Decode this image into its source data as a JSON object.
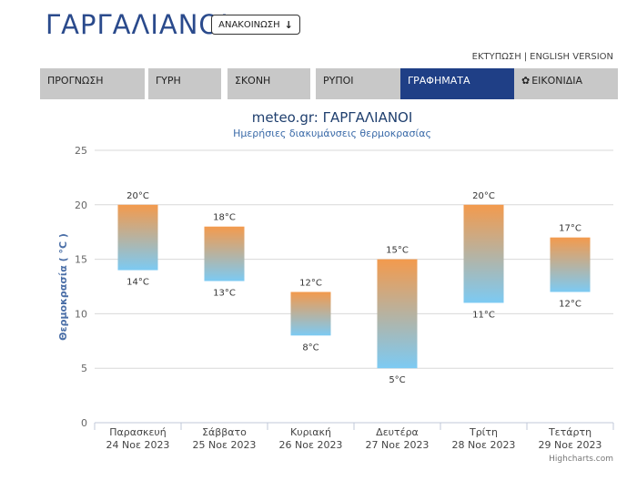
{
  "header": {
    "site_title": "ΓΑΡΓΑΛΙΑΝΟΙ",
    "announce_label": "ΑΝΑΚΟΙΝΩΣΗ",
    "announce_icon": "arrow-down-icon"
  },
  "toplinks": {
    "print": "ΕΚΤΥΠΩΣΗ",
    "separator": "|",
    "english": "ENGLISH VERSION"
  },
  "tabs": [
    {
      "label": "ΠΡΟΓΝΩΣΗ"
    },
    {
      "label": "ΓΥΡΗ"
    },
    {
      "label": "ΣΚΟΝΗ"
    },
    {
      "label": "ΡΥΠΟΙ"
    },
    {
      "label": "ΓΡΑΦΗΜΑΤΑ"
    },
    {
      "label": "ΕΙΚΟΝΙΔΙΑ"
    }
  ],
  "colors": {
    "brand": "#2a4a8c",
    "active_tab": "#1f3f86",
    "tab_bg": "#c8c8c8",
    "bar_top": "#f39a4d",
    "bar_bottom": "#7ccaf3"
  },
  "credits": "Highcharts.com",
  "chart_data": {
    "type": "columnrange",
    "title": "meteo.gr: ΓΑΡΓΑΛΙΑΝΟΙ",
    "subtitle": "Ημερήσιες διακυμάνσεις θερμοκρασίας",
    "ylabel": "Θερμοκρασία ( °C )",
    "ylim": [
      0,
      25
    ],
    "yticks": [
      "0",
      "5",
      "10",
      "15",
      "20",
      "25"
    ],
    "grid": true,
    "categories": [
      {
        "day": "Παρασκευή",
        "date": "24 Νοε 2023"
      },
      {
        "day": "Σάββατο",
        "date": "25 Νοε 2023"
      },
      {
        "day": "Κυριακή",
        "date": "26 Νοε 2023"
      },
      {
        "day": "Δευτέρα",
        "date": "27 Νοε 2023"
      },
      {
        "day": "Τρίτη",
        "date": "28 Νοε 2023"
      },
      {
        "day": "Τετάρτη",
        "date": "29 Νοε 2023"
      }
    ],
    "series": [
      {
        "low": [
          14,
          13,
          8,
          5,
          11,
          12
        ],
        "high": [
          20,
          18,
          12,
          15,
          20,
          17
        ],
        "low_labels": [
          "14°C",
          "13°C",
          "8°C",
          "5°C",
          "11°C",
          "12°C"
        ],
        "high_labels": [
          "20°C",
          "18°C",
          "12°C",
          "15°C",
          "20°C",
          "17°C"
        ]
      }
    ]
  }
}
